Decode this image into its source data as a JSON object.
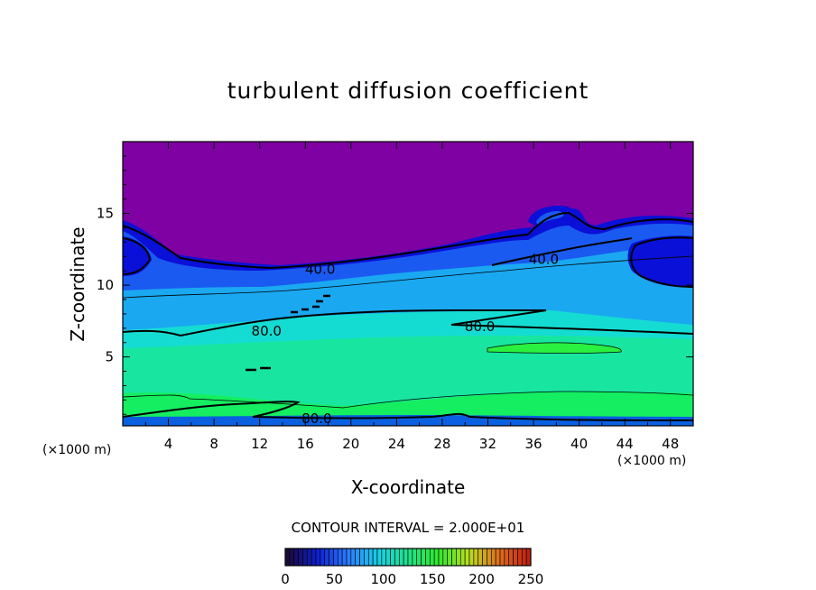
{
  "chart_data": {
    "type": "heatmap",
    "title": "turbulent diffusion coefficient",
    "xlabel": "X-coordinate",
    "ylabel": "Z-coordinate",
    "x_unit": "(×1000 m)",
    "y_unit": "(×1000 m)",
    "xlim": [
      0,
      50
    ],
    "ylim": [
      0.2,
      20
    ],
    "x_ticks": [
      4,
      8,
      12,
      16,
      20,
      24,
      28,
      32,
      36,
      40,
      44,
      48
    ],
    "y_ticks": [
      5,
      10,
      15
    ],
    "contour_interval_text": "CONTOUR INTERVAL = 2.000E+01",
    "contour_labels": [
      {
        "text": "40.0",
        "x": 17.3,
        "z": 11.1
      },
      {
        "text": "40.0",
        "x": 36.9,
        "z": 11.8
      },
      {
        "text": "80.0",
        "x": 12.6,
        "z": 6.8
      },
      {
        "text": "80.0",
        "x": 31.3,
        "z": 7.1
      },
      {
        "text": "80.0",
        "x": 17.0,
        "z": 0.7
      }
    ],
    "colorbar": {
      "min": 0,
      "max": 250,
      "ticks": [
        0,
        50,
        100,
        150,
        200,
        250
      ],
      "colors": [
        "#1a0a3a",
        "#0d1fd0",
        "#2b7bff",
        "#19cfe8",
        "#22e08a",
        "#30e830",
        "#b8e020",
        "#e07020",
        "#c02010"
      ]
    },
    "field_colors": {
      "low": "#7f00a3",
      "level_20": "#0a10d8",
      "level_40": "#1a5af0",
      "level_60": "#1aa8f0",
      "level_80": "#14dcd2",
      "level_100": "#18e6a0",
      "level_120": "#14ee60"
    }
  }
}
